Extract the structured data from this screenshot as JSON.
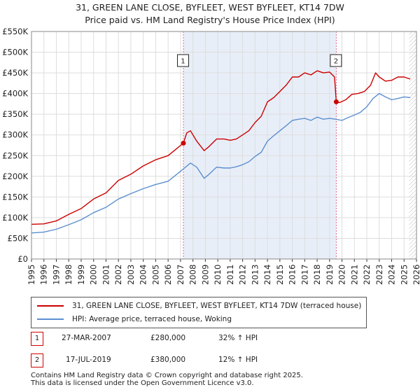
{
  "title_line1": "31, GREEN LANE CLOSE, BYFLEET, WEST BYFLEET, KT14 7DW",
  "title_line2": "Price paid vs. HM Land Registry's House Price Index (HPI)",
  "chart_data": {
    "type": "line",
    "ylim": [
      0,
      550000
    ],
    "xlim": [
      1995,
      2026
    ],
    "y_ticks": [
      0,
      50000,
      100000,
      150000,
      200000,
      250000,
      300000,
      350000,
      400000,
      450000,
      500000,
      550000
    ],
    "y_tick_labels": [
      "£0",
      "£50K",
      "£100K",
      "£150K",
      "£200K",
      "£250K",
      "£300K",
      "£350K",
      "£400K",
      "£450K",
      "£500K",
      "£550K"
    ],
    "x_ticks": [
      1995,
      1996,
      1997,
      1998,
      1999,
      2000,
      2001,
      2002,
      2003,
      2004,
      2005,
      2006,
      2007,
      2008,
      2009,
      2010,
      2011,
      2012,
      2013,
      2014,
      2015,
      2016,
      2017,
      2018,
      2019,
      2020,
      2021,
      2022,
      2023,
      2024,
      2025,
      2026
    ],
    "x_tick_labels": [
      "1995",
      "1996",
      "1997",
      "1998",
      "1999",
      "2000",
      "2001",
      "2002",
      "2003",
      "2004",
      "2005",
      "2006",
      "2007",
      "2008",
      "2009",
      "2010",
      "2011",
      "2012",
      "2013",
      "2014",
      "2015",
      "2016",
      "2017",
      "2018",
      "2019",
      "2020",
      "2021",
      "2022",
      "2023",
      "2024",
      "2025",
      "2026"
    ],
    "shaded_region": [
      2007.23,
      2019.54
    ],
    "hatched_from": 2025.4,
    "series": [
      {
        "name": "31, GREEN LANE CLOSE, BYFLEET, WEST BYFLEET, KT14 7DW (terraced house)",
        "color": "#cc0000",
        "x": [
          1995,
          1996,
          1997,
          1998,
          1999,
          2000,
          2001,
          2002,
          2003,
          2004,
          2005,
          2006,
          2007.23,
          2007.5,
          2007.8,
          2008.3,
          2008.9,
          2009.3,
          2009.9,
          2010.5,
          2011,
          2011.5,
          2012,
          2012.5,
          2013,
          2013.5,
          2014,
          2014.5,
          2015,
          2015.5,
          2016,
          2016.5,
          2017,
          2017.5,
          2018,
          2018.5,
          2019,
          2019.4,
          2019.54,
          2019.8,
          2020.3,
          2020.8,
          2021.3,
          2021.8,
          2022.3,
          2022.7,
          2023,
          2023.5,
          2024,
          2024.5,
          2025,
          2025.5
        ],
        "y": [
          84000,
          85000,
          92000,
          108000,
          122000,
          145000,
          160000,
          190000,
          205000,
          225000,
          240000,
          250000,
          280000,
          305000,
          310000,
          285000,
          262000,
          272000,
          290000,
          290000,
          287000,
          290000,
          300000,
          310000,
          330000,
          345000,
          380000,
          390000,
          405000,
          420000,
          440000,
          440000,
          450000,
          445000,
          455000,
          450000,
          452000,
          440000,
          380000,
          378000,
          385000,
          398000,
          400000,
          405000,
          420000,
          450000,
          440000,
          430000,
          432000,
          440000,
          440000,
          435000
        ]
      },
      {
        "name": "HPI: Average price, terraced house, Woking",
        "color": "#5b8fd0",
        "x": [
          1995,
          1996,
          1997,
          1998,
          1999,
          2000,
          2001,
          2002,
          2003,
          2004,
          2005,
          2006,
          2007,
          2007.8,
          2008.3,
          2008.9,
          2009.3,
          2009.9,
          2010.5,
          2011,
          2011.5,
          2012,
          2012.5,
          2013,
          2013.5,
          2014,
          2014.5,
          2015,
          2015.5,
          2016,
          2016.5,
          2017,
          2017.5,
          2018,
          2018.5,
          2019,
          2019.5,
          2020,
          2020.5,
          2021,
          2021.5,
          2022,
          2022.5,
          2023,
          2023.5,
          2024,
          2024.5,
          2025,
          2025.5
        ],
        "y": [
          63000,
          65000,
          72000,
          83000,
          95000,
          112000,
          125000,
          145000,
          158000,
          170000,
          180000,
          188000,
          212000,
          232000,
          222000,
          195000,
          205000,
          222000,
          220000,
          220000,
          223000,
          228000,
          235000,
          248000,
          258000,
          285000,
          298000,
          310000,
          322000,
          335000,
          338000,
          340000,
          335000,
          343000,
          338000,
          340000,
          338000,
          335000,
          342000,
          348000,
          355000,
          368000,
          388000,
          400000,
          392000,
          385000,
          388000,
          392000,
          390000
        ]
      }
    ],
    "sales": [
      {
        "label": "1",
        "x": 2007.23,
        "y": 280000
      },
      {
        "label": "2",
        "x": 2019.54,
        "y": 380000
      }
    ]
  },
  "legend": {
    "items": [
      "31, GREEN LANE CLOSE, BYFLEET, WEST BYFLEET, KT14 7DW (terraced house)",
      "HPI: Average price, terraced house, Woking"
    ]
  },
  "transactions": [
    {
      "num": "1",
      "date": "27-MAR-2007",
      "price": "£280,000",
      "hpi": "32% ↑ HPI"
    },
    {
      "num": "2",
      "date": "17-JUL-2019",
      "price": "£380,000",
      "hpi": "12% ↑ HPI"
    }
  ],
  "footer": {
    "line1": "Contains HM Land Registry data © Crown copyright and database right 2025.",
    "line2": "This data is licensed under the Open Government Licence v3.0."
  }
}
